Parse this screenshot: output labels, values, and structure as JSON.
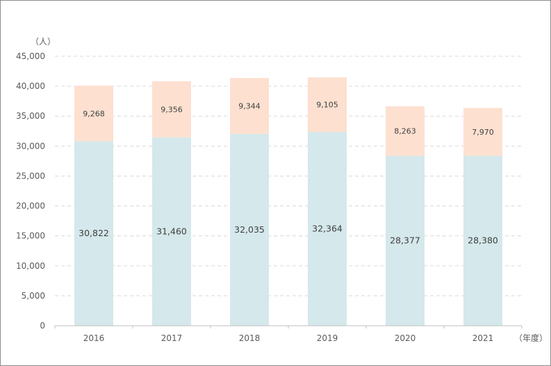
{
  "chart_data": {
    "type": "bar",
    "stacked": true,
    "title": "",
    "y_unit_label": "（人）",
    "x_unit_label": "（年度）",
    "categories": [
      "2016",
      "2017",
      "2018",
      "2019",
      "2020",
      "2021"
    ],
    "series": [
      {
        "values": [
          30822,
          31460,
          32035,
          32364,
          28377,
          28380
        ],
        "color": "#d5e8eb"
      },
      {
        "values": [
          9268,
          9356,
          9344,
          9105,
          8263,
          7970
        ],
        "color": "#fde0d0"
      }
    ],
    "data_labels": {
      "bottom": [
        "30,822",
        "31,460",
        "32,035",
        "32,364",
        "28,377",
        "28,380"
      ],
      "top": [
        "9,268",
        "9,356",
        "9,344",
        "9,105",
        "8,263",
        "7,970"
      ]
    },
    "ylim": [
      0,
      45000
    ],
    "y_ticks": [
      0,
      5000,
      10000,
      15000,
      20000,
      25000,
      30000,
      35000,
      40000,
      45000
    ],
    "y_tick_labels": [
      "0",
      "5,000",
      "10,000",
      "15,000",
      "20,000",
      "25,000",
      "30,000",
      "35,000",
      "40,000",
      "45,000"
    ],
    "grid": true,
    "legend": "none"
  }
}
